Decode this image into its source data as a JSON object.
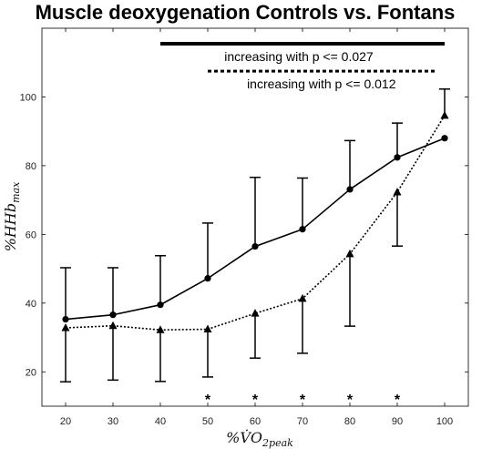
{
  "chart_data": {
    "type": "line",
    "title": "Muscle deoxygenation Controls vs. Fontans",
    "xlabel": "%V̇O",
    "xlabel_sub": "2peak",
    "ylabel": "%HHb",
    "ylabel_sub": "max",
    "xlim": [
      15,
      105
    ],
    "ylim": [
      10,
      120
    ],
    "x": [
      20,
      30,
      40,
      50,
      60,
      70,
      80,
      90,
      100
    ],
    "x_tick_labels": [
      "20",
      "30",
      "40",
      "50",
      "60",
      "70",
      "80",
      "90",
      "100"
    ],
    "y_ticks": [
      20,
      40,
      60,
      80,
      100
    ],
    "y_tick_labels": [
      "20",
      "40",
      "60",
      "80",
      "100"
    ],
    "grid": false,
    "series": [
      {
        "marker": "circle",
        "line_style": "solid",
        "values": [
          35.3,
          36.6,
          39.5,
          47.2,
          56.5,
          61.5,
          73.1,
          82.4,
          88.0
        ],
        "error_upper": [
          50.3,
          50.3,
          53.8,
          63.3,
          76.6,
          76.4,
          87.3,
          92.4,
          null
        ],
        "error_lower": [
          null,
          null,
          null,
          null,
          null,
          null,
          null,
          null,
          null
        ]
      },
      {
        "marker": "triangle",
        "line_style": "dotted",
        "values": [
          32.8,
          33.4,
          32.2,
          32.4,
          37.0,
          41.3,
          54.3,
          72.3,
          94.6
        ],
        "error_upper": [
          null,
          null,
          null,
          null,
          null,
          null,
          null,
          null,
          102.3
        ],
        "error_lower": [
          17.1,
          17.6,
          17.2,
          18.5,
          24.0,
          25.4,
          33.3,
          56.6,
          null
        ]
      }
    ],
    "annotations": [
      {
        "text": "increasing with p <= 0.027",
        "line_style": "solid",
        "x_start": 40,
        "x_end": 100,
        "y": 115.5
      },
      {
        "text": "increasing with p <= 0.012",
        "line_style": "dotted",
        "x_start": 50,
        "x_end": 98,
        "y": 107.5
      }
    ],
    "significance_markers": {
      "symbol": "*",
      "x": [
        50,
        60,
        70,
        80,
        90
      ]
    }
  }
}
